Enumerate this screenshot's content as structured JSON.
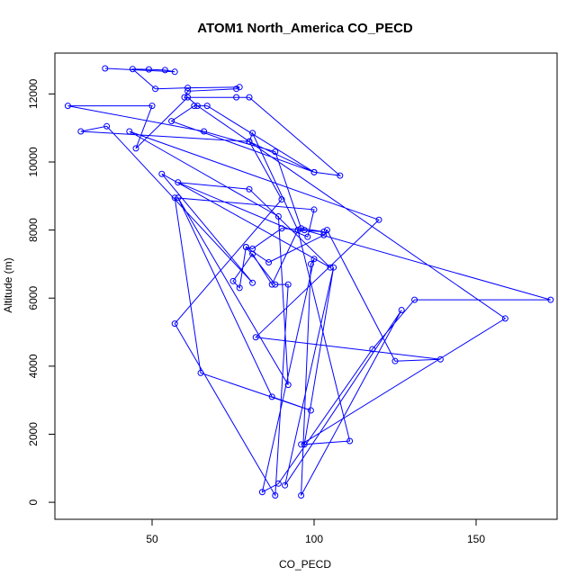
{
  "chart_data": {
    "type": "scatter",
    "title": "ATOM1 North_America CO_PECD",
    "xlabel": "CO_PECD",
    "ylabel": "Altitude (m)",
    "xlim": [
      20,
      175
    ],
    "ylim": [
      -500,
      13200
    ],
    "xticks": [
      50,
      100,
      150
    ],
    "yticks": [
      0,
      2000,
      4000,
      6000,
      8000,
      10000,
      12000
    ],
    "grid": false,
    "legend": "none",
    "colors": {
      "series": "#0000ff",
      "axis": "#000000"
    },
    "series": [
      {
        "mode": "lines+markers",
        "points": [
          [
            35.5,
            12750
          ],
          [
            57,
            12650
          ],
          [
            54,
            12700
          ],
          [
            49,
            12720
          ],
          [
            44,
            12730
          ],
          [
            51,
            12150
          ],
          [
            61,
            12180
          ],
          [
            77,
            12200
          ],
          [
            76,
            12150
          ],
          [
            61,
            12080
          ],
          [
            60,
            11900
          ],
          [
            76,
            11900
          ],
          [
            80,
            11900
          ],
          [
            108,
            9600
          ],
          [
            100,
            9700
          ],
          [
            67,
            11650
          ],
          [
            63,
            11650
          ],
          [
            56,
            11200
          ],
          [
            100,
            9700
          ],
          [
            80,
            10600
          ],
          [
            81,
            10850
          ],
          [
            95,
            8000
          ],
          [
            103,
            7950
          ],
          [
            96,
            8050
          ],
          [
            88,
            10300
          ],
          [
            66,
            10900
          ],
          [
            24,
            11650
          ],
          [
            50,
            11650
          ],
          [
            45,
            10400
          ],
          [
            61,
            11900
          ],
          [
            64,
            11650
          ],
          [
            80,
            10600
          ],
          [
            28,
            10900
          ],
          [
            36,
            11050
          ],
          [
            81,
            6450
          ],
          [
            53,
            9650
          ],
          [
            105,
            6900
          ],
          [
            80,
            9200
          ],
          [
            58,
            9400
          ],
          [
            98,
            7800
          ],
          [
            100,
            8600
          ],
          [
            57,
            8950
          ],
          [
            65,
            3800
          ],
          [
            99,
            2700
          ],
          [
            87,
            3100
          ],
          [
            58,
            8950
          ],
          [
            92,
            3450
          ],
          [
            89,
            8400
          ],
          [
            43,
            10900
          ],
          [
            120,
            8300
          ],
          [
            82,
            4850
          ],
          [
            139,
            4200
          ],
          [
            125,
            4150
          ],
          [
            104,
            8000
          ],
          [
            103,
            7850
          ],
          [
            86,
            7050
          ],
          [
            79,
            7500
          ],
          [
            81,
            7450
          ],
          [
            90,
            8050
          ],
          [
            97,
            8000
          ],
          [
            173,
            5950
          ],
          [
            131,
            5950
          ],
          [
            118,
            4500
          ],
          [
            89,
            550
          ],
          [
            84,
            300
          ],
          [
            100,
            7150
          ],
          [
            99,
            7000
          ],
          [
            96,
            200
          ],
          [
            127,
            5650
          ],
          [
            91,
            500
          ],
          [
            106,
            6900
          ],
          [
            97,
            1700
          ],
          [
            111,
            1800
          ],
          [
            95,
            8000
          ],
          [
            87,
            6400
          ],
          [
            81,
            7300
          ],
          [
            75,
            6500
          ],
          [
            77,
            6300
          ],
          [
            79,
            7500
          ],
          [
            88,
            6400
          ],
          [
            92,
            6400
          ],
          [
            88,
            200
          ],
          [
            57,
            5250
          ],
          [
            90,
            8900
          ],
          [
            80,
            10600
          ],
          [
            159,
            5400
          ],
          [
            96,
            1700
          ]
        ]
      }
    ]
  }
}
